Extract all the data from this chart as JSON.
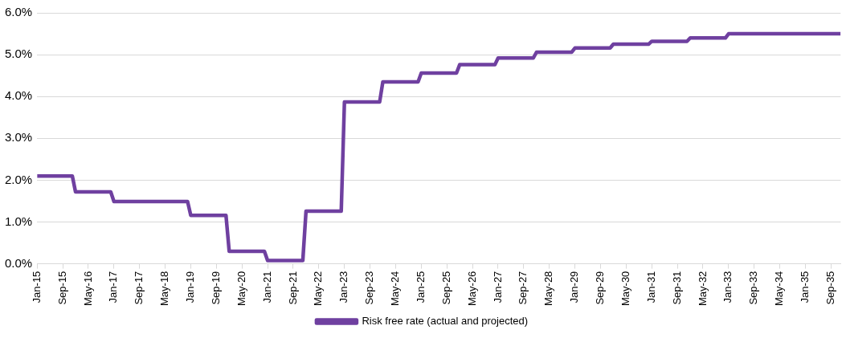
{
  "chart_data": {
    "type": "line",
    "x": [
      "2015-01",
      "2015-12",
      "2016-01",
      "2016-12",
      "2017-01",
      "2018-12",
      "2019-01",
      "2019-12",
      "2020-01",
      "2020-12",
      "2021-01",
      "2021-12",
      "2022-01",
      "2022-12",
      "2023-01",
      "2023-12",
      "2024-01",
      "2024-12",
      "2025-01",
      "2025-12",
      "2026-01",
      "2026-12",
      "2027-01",
      "2027-12",
      "2028-01",
      "2028-12",
      "2029-01",
      "2029-12",
      "2030-01",
      "2030-12",
      "2031-01",
      "2031-12",
      "2032-01",
      "2032-12",
      "2033-01",
      "2035-12"
    ],
    "series": [
      {
        "name": "Risk free rate (actual and projected)",
        "color": "#6f40a0",
        "values": [
          2.1,
          2.1,
          1.72,
          1.72,
          1.49,
          1.49,
          1.16,
          1.16,
          0.3,
          0.3,
          0.08,
          0.08,
          1.26,
          1.26,
          3.87,
          3.87,
          4.35,
          4.35,
          4.56,
          4.56,
          4.76,
          4.76,
          4.92,
          4.92,
          5.06,
          5.06,
          5.16,
          5.16,
          5.25,
          5.25,
          5.32,
          5.32,
          5.4,
          5.4,
          5.5,
          5.5
        ]
      }
    ],
    "xlim": [
      "2015-01",
      "2035-12"
    ],
    "xticks": [
      {
        "value": "2015-01",
        "label": "Jan-15"
      },
      {
        "value": "2015-09",
        "label": "Sep-15"
      },
      {
        "value": "2016-05",
        "label": "May-16"
      },
      {
        "value": "2017-01",
        "label": "Jan-17"
      },
      {
        "value": "2017-09",
        "label": "Sep-17"
      },
      {
        "value": "2018-05",
        "label": "May-18"
      },
      {
        "value": "2019-01",
        "label": "Jan-19"
      },
      {
        "value": "2019-09",
        "label": "Sep-19"
      },
      {
        "value": "2020-05",
        "label": "May-20"
      },
      {
        "value": "2021-01",
        "label": "Jan-21"
      },
      {
        "value": "2021-09",
        "label": "Sep-21"
      },
      {
        "value": "2022-05",
        "label": "May-22"
      },
      {
        "value": "2023-01",
        "label": "Jan-23"
      },
      {
        "value": "2023-09",
        "label": "Sep-23"
      },
      {
        "value": "2024-05",
        "label": "May-24"
      },
      {
        "value": "2025-01",
        "label": "Jan-25"
      },
      {
        "value": "2025-09",
        "label": "Sep-25"
      },
      {
        "value": "2026-05",
        "label": "May-26"
      },
      {
        "value": "2027-01",
        "label": "Jan-27"
      },
      {
        "value": "2027-09",
        "label": "Sep-27"
      },
      {
        "value": "2028-05",
        "label": "May-28"
      },
      {
        "value": "2029-01",
        "label": "Jan-29"
      },
      {
        "value": "2029-09",
        "label": "Sep-29"
      },
      {
        "value": "2030-05",
        "label": "May-30"
      },
      {
        "value": "2031-01",
        "label": "Jan-31"
      },
      {
        "value": "2031-09",
        "label": "Sep-31"
      },
      {
        "value": "2032-05",
        "label": "May-32"
      },
      {
        "value": "2033-01",
        "label": "Jan-33"
      },
      {
        "value": "2033-09",
        "label": "Sep-33"
      },
      {
        "value": "2034-05",
        "label": "May-34"
      },
      {
        "value": "2035-01",
        "label": "Jan-35"
      },
      {
        "value": "2035-09",
        "label": "Sep-35"
      }
    ],
    "ylim": [
      0,
      6
    ],
    "yticks": [
      {
        "value": 0,
        "label": "0.0%"
      },
      {
        "value": 1,
        "label": "1.0%"
      },
      {
        "value": 2,
        "label": "2.0%"
      },
      {
        "value": 3,
        "label": "3.0%"
      },
      {
        "value": 4,
        "label": "4.0%"
      },
      {
        "value": 5,
        "label": "5.0%"
      },
      {
        "value": 6,
        "label": "6.0%"
      }
    ],
    "grid": "y",
    "legend": "bottom",
    "marker": "none",
    "line_style": "solid"
  }
}
